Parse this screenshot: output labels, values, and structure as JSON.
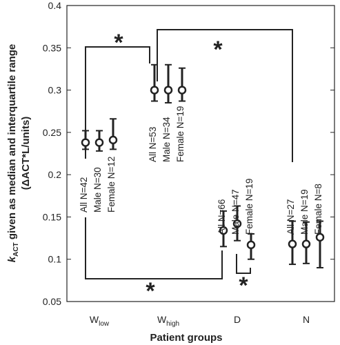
{
  "chart_data": {
    "type": "errorbar",
    "y_label": {
      "symbol": "k",
      "subscript": "ACT",
      "text": " given as median and interquartile range",
      "line2": "(ΔACT*L/units)"
    },
    "x_label": "Patient groups",
    "categories": [
      "W",
      "W",
      "D",
      "N"
    ],
    "category_subscripts": [
      "low",
      "high",
      null,
      null
    ],
    "groups": [
      [
        {
          "label": "All N=42",
          "median": 0.238,
          "q1": 0.23,
          "q3": 0.252
        },
        {
          "label": "Male N=30",
          "median": 0.238,
          "q1": 0.228,
          "q3": 0.252
        },
        {
          "label": "Female N=12",
          "median": 0.241,
          "q1": 0.23,
          "q3": 0.266
        }
      ],
      [
        {
          "label": "All N=53",
          "median": 0.3,
          "q1": 0.287,
          "q3": 0.33
        },
        {
          "label": "Male N=34",
          "median": 0.3,
          "q1": 0.285,
          "q3": 0.33
        },
        {
          "label": "Female N=19",
          "median": 0.3,
          "q1": 0.287,
          "q3": 0.326
        }
      ],
      [
        {
          "label": "All N=66",
          "median": 0.134,
          "q1": 0.115,
          "q3": 0.157
        },
        {
          "label": "Male N=47",
          "median": 0.142,
          "q1": 0.122,
          "q3": 0.163
        },
        {
          "label": "Female N=19",
          "median": 0.117,
          "q1": 0.1,
          "q3": 0.13
        }
      ],
      [
        {
          "label": "All N=27",
          "median": 0.118,
          "q1": 0.094,
          "q3": 0.145
        },
        {
          "label": "Male N=19",
          "median": 0.118,
          "q1": 0.095,
          "q3": 0.144
        },
        {
          "label": "Female N=8",
          "median": 0.126,
          "q1": 0.09,
          "q3": 0.145
        }
      ]
    ],
    "annotations": [
      "*",
      "*",
      "*",
      "*"
    ],
    "ylim": [
      0.05,
      0.4
    ],
    "yticks": [
      0.05,
      0.1,
      0.15,
      0.2,
      0.25,
      0.3,
      0.35,
      0.4
    ],
    "color": "#222222"
  }
}
